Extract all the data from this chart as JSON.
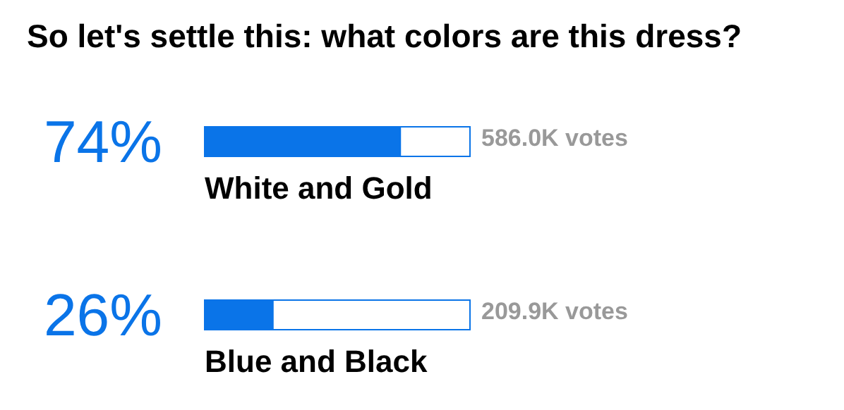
{
  "chart_data": {
    "type": "bar",
    "orientation": "horizontal",
    "title": "So let's settle this: what colors are this dress?",
    "categories": [
      "White and Gold",
      "Blue and Black"
    ],
    "values": [
      74,
      26
    ],
    "value_labels": [
      "74%",
      "26%"
    ],
    "color": "#0a74e8",
    "xlim": [
      0,
      100
    ],
    "annotations": [
      "586.0K votes",
      "209.9K votes"
    ]
  }
}
